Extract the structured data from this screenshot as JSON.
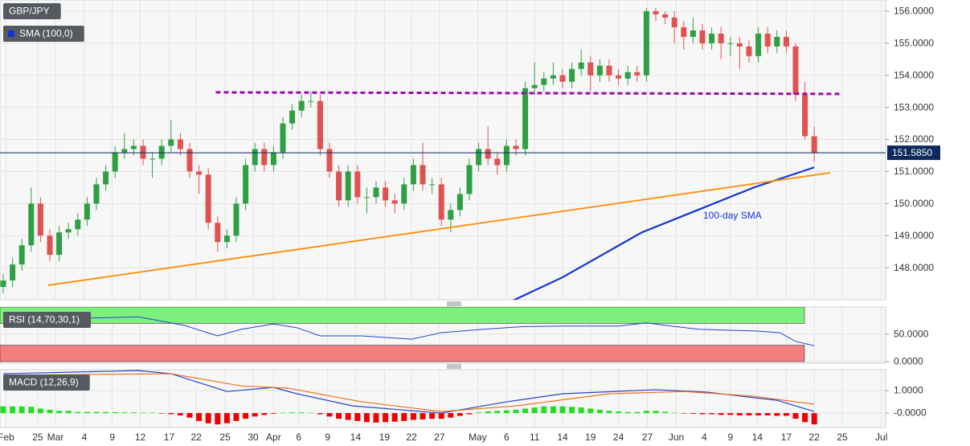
{
  "chart_data": [
    {
      "type": "candlestick",
      "title": "GBP/JPY",
      "indicator_label": "SMA (100,0)",
      "up_color": "#2ea043",
      "down_color": "#e0524f",
      "xlim": [
        -0.345,
        94.655
      ],
      "ylim": [
        147,
        156.35
      ],
      "yticks": [
        {
          "value": 148,
          "label": "148.0000"
        },
        {
          "value": 149,
          "label": "149.0000"
        },
        {
          "value": 150,
          "label": "150.0000"
        },
        {
          "value": 151,
          "label": "151.0000"
        },
        {
          "value": 152,
          "label": "152.0000"
        },
        {
          "value": 153,
          "label": "153.0000"
        },
        {
          "value": 154,
          "label": "154.0000"
        },
        {
          "value": 155,
          "label": "155.0000"
        },
        {
          "value": 156,
          "label": "156.0000"
        }
      ],
      "grid": true,
      "open": [
        147.4,
        147.6,
        148.1,
        148.7,
        150.0,
        149.0,
        148.4,
        149.1,
        149.2,
        149.5,
        150.0,
        150.6,
        151.0,
        151.6,
        151.7,
        151.8,
        151.4,
        151.4,
        151.8,
        152.0,
        151.7,
        151.0,
        150.9,
        149.4,
        148.8,
        149.0,
        150.0,
        151.2,
        151.7,
        151.2,
        151.6,
        152.5,
        152.9,
        153.2,
        153.2,
        151.7,
        151.0,
        150.1,
        151.0,
        150.2,
        150.2,
        150.5,
        150.1,
        150.0,
        150.6,
        151.2,
        150.6,
        150.6,
        149.5,
        149.8,
        150.3,
        151.2,
        151.7,
        151.4,
        151.2,
        151.8,
        151.7,
        153.6,
        153.7,
        153.9,
        154.0,
        153.8,
        154.2,
        154.4,
        154.0,
        154.3,
        154.0,
        153.9,
        154.1,
        154.0,
        156.0,
        155.9,
        155.8,
        155.5,
        155.2,
        155.4,
        155.0,
        155.3,
        155.0,
        155.0,
        154.9,
        154.6,
        155.3,
        154.9,
        155.2,
        154.9,
        153.4,
        152.1
      ],
      "high": [
        147.8,
        148.3,
        148.9,
        150.5,
        150.2,
        149.2,
        149.3,
        149.4,
        149.7,
        150.2,
        150.8,
        151.2,
        151.8,
        152.2,
        152.0,
        152.0,
        151.6,
        152.0,
        152.6,
        152.2,
        151.9,
        151.2,
        151.1,
        149.6,
        149.2,
        150.2,
        151.4,
        151.9,
        151.9,
        151.8,
        152.7,
        153.1,
        153.4,
        153.5,
        153.4,
        151.9,
        151.2,
        151.2,
        151.2,
        150.5,
        150.7,
        150.7,
        150.3,
        150.8,
        151.4,
        151.9,
        150.8,
        150.8,
        150.0,
        150.5,
        151.4,
        151.9,
        152.4,
        151.6,
        152.0,
        152.0,
        153.8,
        154.4,
        154.1,
        154.4,
        154.2,
        154.4,
        154.8,
        154.6,
        154.5,
        154.5,
        154.2,
        154.3,
        154.3,
        156.1,
        156.1,
        156.0,
        156.0,
        155.7,
        155.8,
        155.6,
        155.5,
        155.5,
        155.2,
        155.2,
        155.1,
        155.5,
        155.5,
        155.4,
        155.4,
        155.0,
        153.8,
        152.4
      ],
      "low": [
        147.2,
        147.4,
        147.9,
        148.5,
        148.8,
        148.2,
        148.2,
        148.9,
        149.0,
        149.3,
        149.8,
        150.4,
        150.8,
        151.4,
        151.5,
        151.2,
        150.8,
        151.2,
        151.6,
        151.5,
        150.8,
        150.3,
        149.2,
        148.5,
        148.6,
        148.8,
        149.8,
        151.0,
        151.0,
        151.0,
        151.4,
        152.3,
        152.7,
        153.0,
        151.5,
        150.8,
        149.9,
        149.9,
        150.0,
        149.7,
        150.0,
        149.9,
        149.7,
        149.8,
        150.4,
        150.4,
        150.3,
        149.3,
        149.1,
        149.6,
        150.1,
        151.0,
        151.2,
        150.9,
        151.0,
        151.5,
        151.5,
        153.4,
        153.5,
        153.7,
        153.6,
        153.6,
        154.0,
        153.5,
        153.8,
        153.8,
        153.7,
        153.7,
        153.8,
        153.8,
        155.7,
        155.6,
        155.0,
        154.8,
        155.0,
        154.8,
        154.8,
        154.5,
        154.6,
        154.2,
        154.4,
        154.4,
        154.7,
        154.7,
        154.7,
        153.2,
        152.0,
        151.3
      ],
      "close": [
        147.6,
        148.1,
        148.7,
        150.0,
        149.0,
        148.4,
        149.1,
        149.2,
        149.5,
        150.0,
        150.6,
        151.0,
        151.6,
        151.7,
        151.8,
        151.4,
        151.4,
        151.8,
        152.0,
        151.7,
        151.0,
        150.9,
        149.4,
        148.8,
        149.0,
        150.0,
        151.2,
        151.7,
        151.2,
        151.6,
        152.5,
        152.9,
        153.2,
        153.2,
        151.7,
        151.0,
        150.1,
        151.0,
        150.2,
        150.2,
        150.5,
        150.1,
        150.0,
        150.6,
        151.2,
        150.6,
        150.6,
        149.5,
        149.8,
        150.3,
        151.2,
        151.7,
        151.4,
        151.2,
        151.8,
        151.7,
        153.6,
        153.7,
        153.9,
        154.0,
        153.8,
        154.2,
        154.4,
        154.0,
        154.3,
        154.0,
        153.9,
        154.1,
        154.0,
        156.0,
        155.9,
        155.8,
        155.5,
        155.2,
        155.4,
        155.0,
        155.3,
        155.0,
        155.0,
        154.9,
        154.6,
        155.3,
        154.9,
        155.2,
        154.9,
        153.4,
        152.1,
        151.585
      ],
      "last_price": 151.585,
      "last_price_label": "151.5850",
      "last_price_color": "#0d2a5c",
      "overlays": [
        {
          "name": "100-day SMA",
          "color": "#1234d6",
          "dashed": false,
          "x": [
            54.5,
            60,
            68.5,
            74.5,
            80.5,
            87
          ],
          "values": [
            146.95,
            147.7,
            149.1,
            149.8,
            150.5,
            151.13
          ]
        },
        {
          "color": "#ff8c00",
          "dashed": false,
          "x": [
            4.8,
            88.7
          ],
          "values": [
            147.45,
            150.96
          ]
        },
        {
          "color": "#9b0aa8",
          "dashed": true,
          "x": [
            22.8,
            90
          ],
          "values": [
            153.47,
            153.42
          ]
        }
      ]
    },
    {
      "type": "line",
      "title": "RSI (14,70,30,1)",
      "color": "#2244cc",
      "xlim": [
        -0.345,
        94.655
      ],
      "ylim": [
        -3,
        100
      ],
      "yticks": [
        {
          "value": 0,
          "label": "0.0000"
        },
        {
          "value": 50,
          "label": "50.0000"
        }
      ],
      "bands": [
        {
          "from": 70,
          "to": 100,
          "color": "#7ef07e"
        },
        {
          "from": 0,
          "to": 30,
          "color": "#f57f7f"
        }
      ],
      "x": [
        0,
        8,
        14.5,
        19.5,
        23,
        25.5,
        29,
        31.5,
        34,
        38.5,
        43.8,
        47,
        51.4,
        55.7,
        60,
        66,
        69,
        71.2,
        74.7,
        80.7,
        83.3,
        85,
        87
      ],
      "values": [
        79,
        79,
        82,
        66,
        47,
        59,
        69,
        62,
        47,
        47,
        41,
        53,
        59,
        64,
        65,
        65,
        71,
        66,
        59,
        56,
        53,
        37,
        29
      ]
    },
    {
      "type": "macd",
      "title": "MACD (12,26,9)",
      "xlim": [
        -0.345,
        94.655
      ],
      "ylim": [
        -0.64,
        1.93
      ],
      "yticks": [
        {
          "value": 0,
          "label": "-0.0000"
        },
        {
          "value": 1,
          "label": "1.0000"
        }
      ],
      "xticks": [
        {
          "value": 0.3,
          "label": "Feb"
        },
        {
          "value": 3.7,
          "label": "25"
        },
        {
          "value": 5.6,
          "label": "Mar"
        },
        {
          "value": 8.7,
          "label": "4"
        },
        {
          "value": 11.7,
          "label": "9"
        },
        {
          "value": 14.7,
          "label": "12"
        },
        {
          "value": 17.8,
          "label": "17"
        },
        {
          "value": 20.7,
          "label": "22"
        },
        {
          "value": 23.8,
          "label": "25"
        },
        {
          "value": 26.8,
          "label": "30"
        },
        {
          "value": 29,
          "label": "Apr"
        },
        {
          "value": 31.7,
          "label": "6"
        },
        {
          "value": 34.8,
          "label": "9"
        },
        {
          "value": 37.8,
          "label": "14"
        },
        {
          "value": 40.9,
          "label": "19"
        },
        {
          "value": 43.8,
          "label": "22"
        },
        {
          "value": 46.8,
          "label": "27"
        },
        {
          "value": 50.9,
          "label": "May"
        },
        {
          "value": 54,
          "label": "6"
        },
        {
          "value": 57,
          "label": "11"
        },
        {
          "value": 60,
          "label": "14"
        },
        {
          "value": 63,
          "label": "19"
        },
        {
          "value": 66,
          "label": "24"
        },
        {
          "value": 69.1,
          "label": "27"
        },
        {
          "value": 72.2,
          "label": "Jun"
        },
        {
          "value": 75.2,
          "label": "4"
        },
        {
          "value": 78,
          "label": "9"
        },
        {
          "value": 80.9,
          "label": "14"
        },
        {
          "value": 84,
          "label": "17"
        },
        {
          "value": 87,
          "label": "22"
        },
        {
          "value": 90,
          "label": "25"
        },
        {
          "value": 94.2,
          "label": "Jul"
        }
      ],
      "histogram": [
        0.3,
        0.3,
        0.3,
        0.28,
        0.2,
        0.15,
        0.1,
        0.1,
        0.05,
        0.05,
        0.05,
        0.05,
        0.04,
        0.03,
        0.03,
        0.02,
        0.02,
        -0.02,
        -0.05,
        -0.1,
        -0.2,
        -0.35,
        -0.45,
        -0.5,
        -0.45,
        -0.35,
        -0.25,
        -0.15,
        -0.08,
        -0.03,
        0.02,
        0.03,
        0.03,
        0.02,
        -0.05,
        -0.15,
        -0.25,
        -0.3,
        -0.35,
        -0.4,
        -0.42,
        -0.4,
        -0.38,
        -0.35,
        -0.3,
        -0.28,
        -0.25,
        -0.25,
        -0.2,
        -0.12,
        -0.05,
        0.03,
        0.08,
        0.1,
        0.12,
        0.15,
        0.2,
        0.25,
        0.3,
        0.3,
        0.3,
        0.28,
        0.25,
        0.2,
        0.15,
        0.1,
        0.07,
        0.05,
        0.05,
        0.1,
        0.1,
        0.06,
        0.02,
        -0.02,
        -0.03,
        -0.05,
        -0.05,
        -0.08,
        -0.08,
        -0.1,
        -0.1,
        -0.1,
        -0.1,
        -0.12,
        -0.12,
        -0.25,
        -0.4,
        -0.5
      ],
      "positive_color": "#22dd22",
      "negative_color": "#ee0000",
      "series": [
        {
          "color": "#2244cc",
          "x": [
            0,
            14.5,
            18,
            24,
            29,
            31.5,
            37.5,
            47,
            54,
            60,
            70,
            75.5,
            83,
            87
          ],
          "values": [
            1.75,
            1.89,
            1.75,
            0.96,
            1.14,
            0.86,
            0.32,
            0,
            0.5,
            0.86,
            1.04,
            0.93,
            0.57,
            0.07
          ]
        },
        {
          "color": "#f07020",
          "x": [
            0,
            18,
            25.5,
            30.5,
            38.5,
            47,
            55,
            65,
            73,
            80.5,
            87
          ],
          "values": [
            1.68,
            1.75,
            1.21,
            1.11,
            0.5,
            0.07,
            0.32,
            0.86,
            0.96,
            0.75,
            0.39
          ]
        }
      ]
    }
  ]
}
